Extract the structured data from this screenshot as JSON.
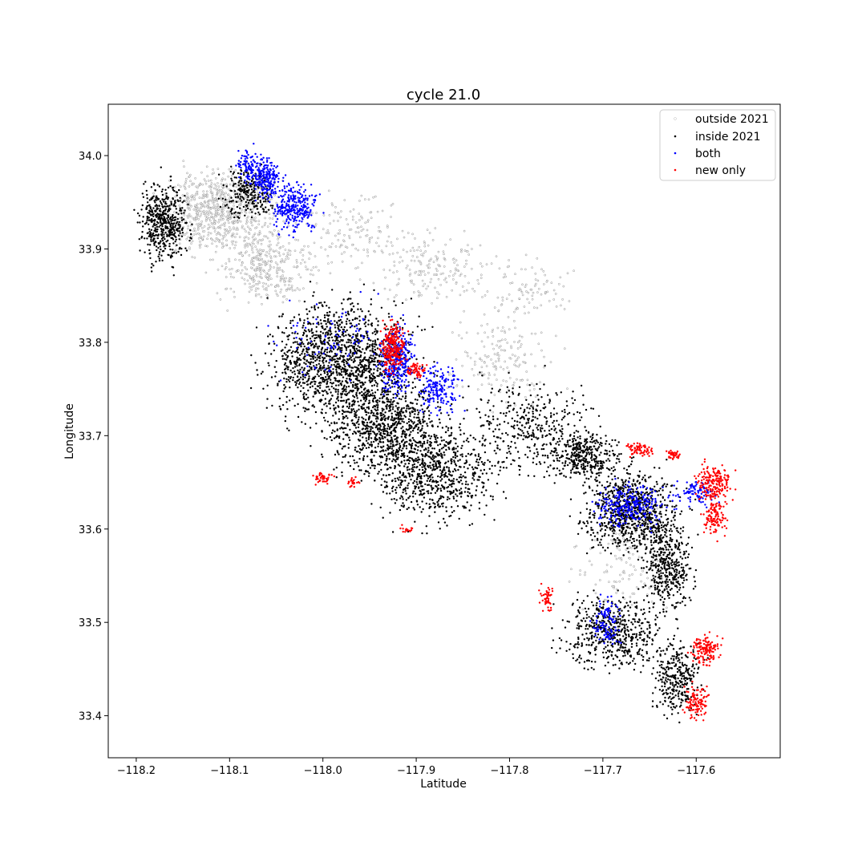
{
  "chart_data": {
    "type": "scatter",
    "title": "cycle 21.0",
    "xlabel": "Latitude",
    "ylabel": "Longitude",
    "xlim": [
      -118.23,
      -117.51
    ],
    "ylim": [
      33.355,
      34.055
    ],
    "xticks": [
      -118.2,
      -118.1,
      -118.0,
      -117.9,
      -117.8,
      -117.7,
      -117.6
    ],
    "xtick_labels": [
      "−118.2",
      "−118.1",
      "−118.0",
      "−117.9",
      "−117.8",
      "−117.7",
      "−117.6"
    ],
    "yticks": [
      33.4,
      33.5,
      33.6,
      33.7,
      33.8,
      33.9,
      34.0
    ],
    "ytick_labels": [
      "33.4",
      "33.5",
      "33.6",
      "33.7",
      "33.8",
      "33.9",
      "34.0"
    ],
    "grid": false,
    "legend_position": "top-right",
    "series": [
      {
        "name": "outside 2021",
        "color": "#ffffff",
        "outline": "#000000",
        "regions": [
          {
            "center": [
              -118.11,
              33.94
            ],
            "spread": [
              0.045,
              0.035
            ],
            "density": 0.8,
            "count": 900
          },
          {
            "center": [
              -118.06,
              33.88
            ],
            "spread": [
              0.04,
              0.03
            ],
            "density": 0.55,
            "count": 600
          },
          {
            "center": [
              -117.97,
              33.92
            ],
            "spread": [
              0.05,
              0.035
            ],
            "density": 0.3,
            "count": 500
          },
          {
            "center": [
              -117.88,
              33.88
            ],
            "spread": [
              0.05,
              0.03
            ],
            "density": 0.35,
            "count": 500
          },
          {
            "center": [
              -117.78,
              33.86
            ],
            "spread": [
              0.04,
              0.025
            ],
            "density": 0.25,
            "count": 350
          },
          {
            "center": [
              -117.81,
              33.78
            ],
            "spread": [
              0.04,
              0.04
            ],
            "density": 0.35,
            "count": 500
          },
          {
            "center": [
              -117.68,
              33.56
            ],
            "spread": [
              0.04,
              0.04
            ],
            "density": 0.3,
            "count": 400
          }
        ]
      },
      {
        "name": "inside 2021",
        "color": "#000000",
        "regions": [
          {
            "center": [
              -118.17,
              33.93
            ],
            "spread": [
              0.02,
              0.035
            ],
            "density": 0.9,
            "count": 550
          },
          {
            "center": [
              -118.08,
              33.96
            ],
            "spread": [
              0.02,
              0.02
            ],
            "density": 0.8,
            "count": 300
          },
          {
            "center": [
              -117.98,
              33.78
            ],
            "spread": [
              0.06,
              0.05
            ],
            "density": 0.9,
            "count": 1600
          },
          {
            "center": [
              -117.93,
              33.71
            ],
            "spread": [
              0.05,
              0.04
            ],
            "density": 0.85,
            "count": 1000
          },
          {
            "center": [
              -117.88,
              33.66
            ],
            "spread": [
              0.05,
              0.04
            ],
            "density": 0.8,
            "count": 900
          },
          {
            "center": [
              -117.78,
              33.71
            ],
            "spread": [
              0.05,
              0.04
            ],
            "density": 0.6,
            "count": 600
          },
          {
            "center": [
              -117.72,
              33.68
            ],
            "spread": [
              0.03,
              0.02
            ],
            "density": 0.9,
            "count": 400
          },
          {
            "center": [
              -117.67,
              33.62
            ],
            "spread": [
              0.04,
              0.035
            ],
            "density": 0.95,
            "count": 900
          },
          {
            "center": [
              -117.63,
              33.56
            ],
            "spread": [
              0.02,
              0.04
            ],
            "density": 0.9,
            "count": 450
          },
          {
            "center": [
              -117.69,
              33.49
            ],
            "spread": [
              0.04,
              0.03
            ],
            "density": 0.9,
            "count": 600
          },
          {
            "center": [
              -117.62,
              33.44
            ],
            "spread": [
              0.02,
              0.03
            ],
            "density": 0.9,
            "count": 350
          }
        ]
      },
      {
        "name": "both",
        "color": "#0000ff",
        "regions": [
          {
            "center": [
              -118.08,
              33.99
            ],
            "spread": [
              0.01,
              0.015
            ],
            "density": 0.8,
            "count": 120
          },
          {
            "center": [
              -118.06,
              33.975
            ],
            "spread": [
              0.012,
              0.018
            ],
            "density": 0.9,
            "count": 220
          },
          {
            "center": [
              -118.03,
              33.945
            ],
            "spread": [
              0.018,
              0.02
            ],
            "density": 0.95,
            "count": 300
          },
          {
            "center": [
              -117.92,
              33.78
            ],
            "spread": [
              0.015,
              0.03
            ],
            "density": 0.9,
            "count": 350
          },
          {
            "center": [
              -117.875,
              33.75
            ],
            "spread": [
              0.018,
              0.02
            ],
            "density": 0.8,
            "count": 220
          },
          {
            "center": [
              -117.99,
              33.8
            ],
            "spread": [
              0.05,
              0.03
            ],
            "density": 0.4,
            "count": 220
          },
          {
            "center": [
              -117.67,
              33.625
            ],
            "spread": [
              0.03,
              0.018
            ],
            "density": 0.9,
            "count": 300
          },
          {
            "center": [
              -117.695,
              33.5
            ],
            "spread": [
              0.012,
              0.02
            ],
            "density": 0.8,
            "count": 140
          },
          {
            "center": [
              -117.6,
              33.64
            ],
            "spread": [
              0.018,
              0.012
            ],
            "density": 0.8,
            "count": 120
          }
        ]
      },
      {
        "name": "new only",
        "color": "#ff0000",
        "regions": [
          {
            "center": [
              -117.925,
              33.795
            ],
            "spread": [
              0.01,
              0.02
            ],
            "density": 0.95,
            "count": 260
          },
          {
            "center": [
              -117.9,
              33.77
            ],
            "spread": [
              0.008,
              0.006
            ],
            "density": 0.9,
            "count": 60
          },
          {
            "center": [
              -117.66,
              33.685
            ],
            "spread": [
              0.012,
              0.005
            ],
            "density": 0.9,
            "count": 80
          },
          {
            "center": [
              -117.625,
              33.68
            ],
            "spread": [
              0.006,
              0.005
            ],
            "density": 0.9,
            "count": 40
          },
          {
            "center": [
              -117.58,
              33.65
            ],
            "spread": [
              0.015,
              0.015
            ],
            "density": 0.95,
            "count": 200
          },
          {
            "center": [
              -117.58,
              33.615
            ],
            "spread": [
              0.01,
              0.02
            ],
            "density": 0.9,
            "count": 130
          },
          {
            "center": [
              -117.59,
              33.47
            ],
            "spread": [
              0.012,
              0.012
            ],
            "density": 0.95,
            "count": 150
          },
          {
            "center": [
              -117.6,
              33.415
            ],
            "spread": [
              0.01,
              0.015
            ],
            "density": 0.9,
            "count": 110
          },
          {
            "center": [
              -118.0,
              33.655
            ],
            "spread": [
              0.008,
              0.005
            ],
            "density": 0.9,
            "count": 50
          },
          {
            "center": [
              -117.967,
              33.65
            ],
            "spread": [
              0.006,
              0.005
            ],
            "density": 0.8,
            "count": 30
          },
          {
            "center": [
              -117.76,
              33.525
            ],
            "spread": [
              0.006,
              0.012
            ],
            "density": 0.9,
            "count": 50
          },
          {
            "center": [
              -117.91,
              33.6
            ],
            "spread": [
              0.005,
              0.003
            ],
            "density": 0.8,
            "count": 20
          }
        ]
      }
    ]
  }
}
